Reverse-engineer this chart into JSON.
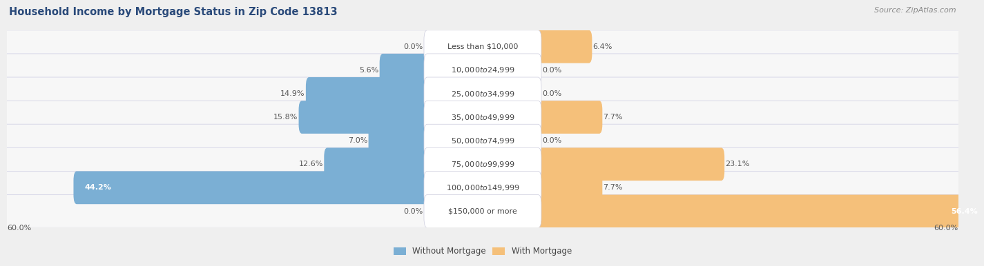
{
  "title": "Household Income by Mortgage Status in Zip Code 13813",
  "source": "Source: ZipAtlas.com",
  "categories": [
    "Less than $10,000",
    "$10,000 to $24,999",
    "$25,000 to $34,999",
    "$35,000 to $49,999",
    "$50,000 to $74,999",
    "$75,000 to $99,999",
    "$100,000 to $149,999",
    "$150,000 or more"
  ],
  "without_mortgage": [
    0.0,
    5.6,
    14.9,
    15.8,
    7.0,
    12.6,
    44.2,
    0.0
  ],
  "with_mortgage": [
    6.4,
    0.0,
    0.0,
    7.7,
    0.0,
    23.1,
    7.7,
    56.4
  ],
  "color_without": "#7bafd4",
  "color_with": "#f5c07a",
  "axis_max": 60.0,
  "background_color": "#efefef",
  "row_bg_color": "#f7f7f7",
  "row_border_color": "#d8d8e8",
  "title_fontsize": 10.5,
  "source_fontsize": 8,
  "value_fontsize": 8,
  "category_fontsize": 8,
  "legend_fontsize": 8.5
}
